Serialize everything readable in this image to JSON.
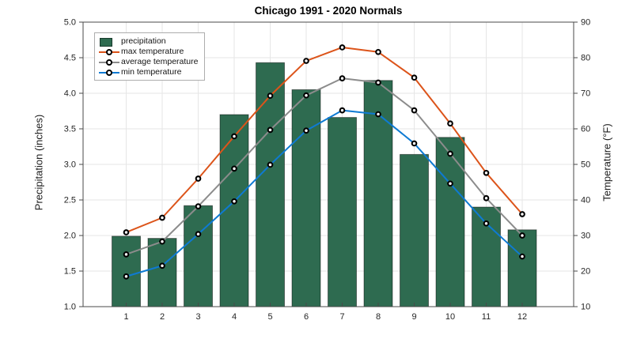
{
  "chart_data": {
    "type": "bar+line",
    "title": "Chicago 1991 - 2020 Normals",
    "xlabel": "",
    "ylabel": "Precipitation (inches)",
    "y2label": "Temperature (°F)",
    "categories": [
      "1",
      "2",
      "3",
      "4",
      "5",
      "6",
      "7",
      "8",
      "9",
      "10",
      "11",
      "12"
    ],
    "bar_series": {
      "name": "precipitation",
      "axis": "left",
      "values": [
        1.99,
        1.96,
        2.42,
        3.7,
        4.43,
        4.05,
        3.66,
        4.18,
        3.14,
        3.38,
        2.4,
        2.08
      ]
    },
    "line_series": [
      {
        "name": "max temperature",
        "key": "max",
        "axis": "right",
        "values": [
          30.9,
          35.0,
          46.0,
          57.9,
          69.3,
          79.1,
          82.9,
          81.6,
          74.4,
          61.5,
          47.6,
          36.0
        ]
      },
      {
        "name": "average temperature",
        "key": "avg",
        "axis": "right",
        "values": [
          24.7,
          28.3,
          38.2,
          48.8,
          59.7,
          69.4,
          74.2,
          73.0,
          65.2,
          53.0,
          40.5,
          30.0
        ]
      },
      {
        "name": "min temperature",
        "key": "min",
        "axis": "right",
        "values": [
          18.5,
          21.5,
          30.4,
          39.6,
          49.9,
          59.5,
          65.2,
          64.1,
          55.9,
          44.6,
          33.4,
          24.1
        ]
      }
    ],
    "ylim": [
      1.0,
      5.0
    ],
    "ytick_step": 0.5,
    "y2lim": [
      10,
      90
    ],
    "y2tick_step": 10,
    "grid": true,
    "legend_position": "top-left",
    "colors": {
      "bar": "#2e6b50",
      "max": "#dc541a",
      "avg": "#8c8c8c",
      "min": "#0e7ad3",
      "grid": "#e6e6e6",
      "axis": "#4a4a4a",
      "text": "#252525"
    }
  }
}
